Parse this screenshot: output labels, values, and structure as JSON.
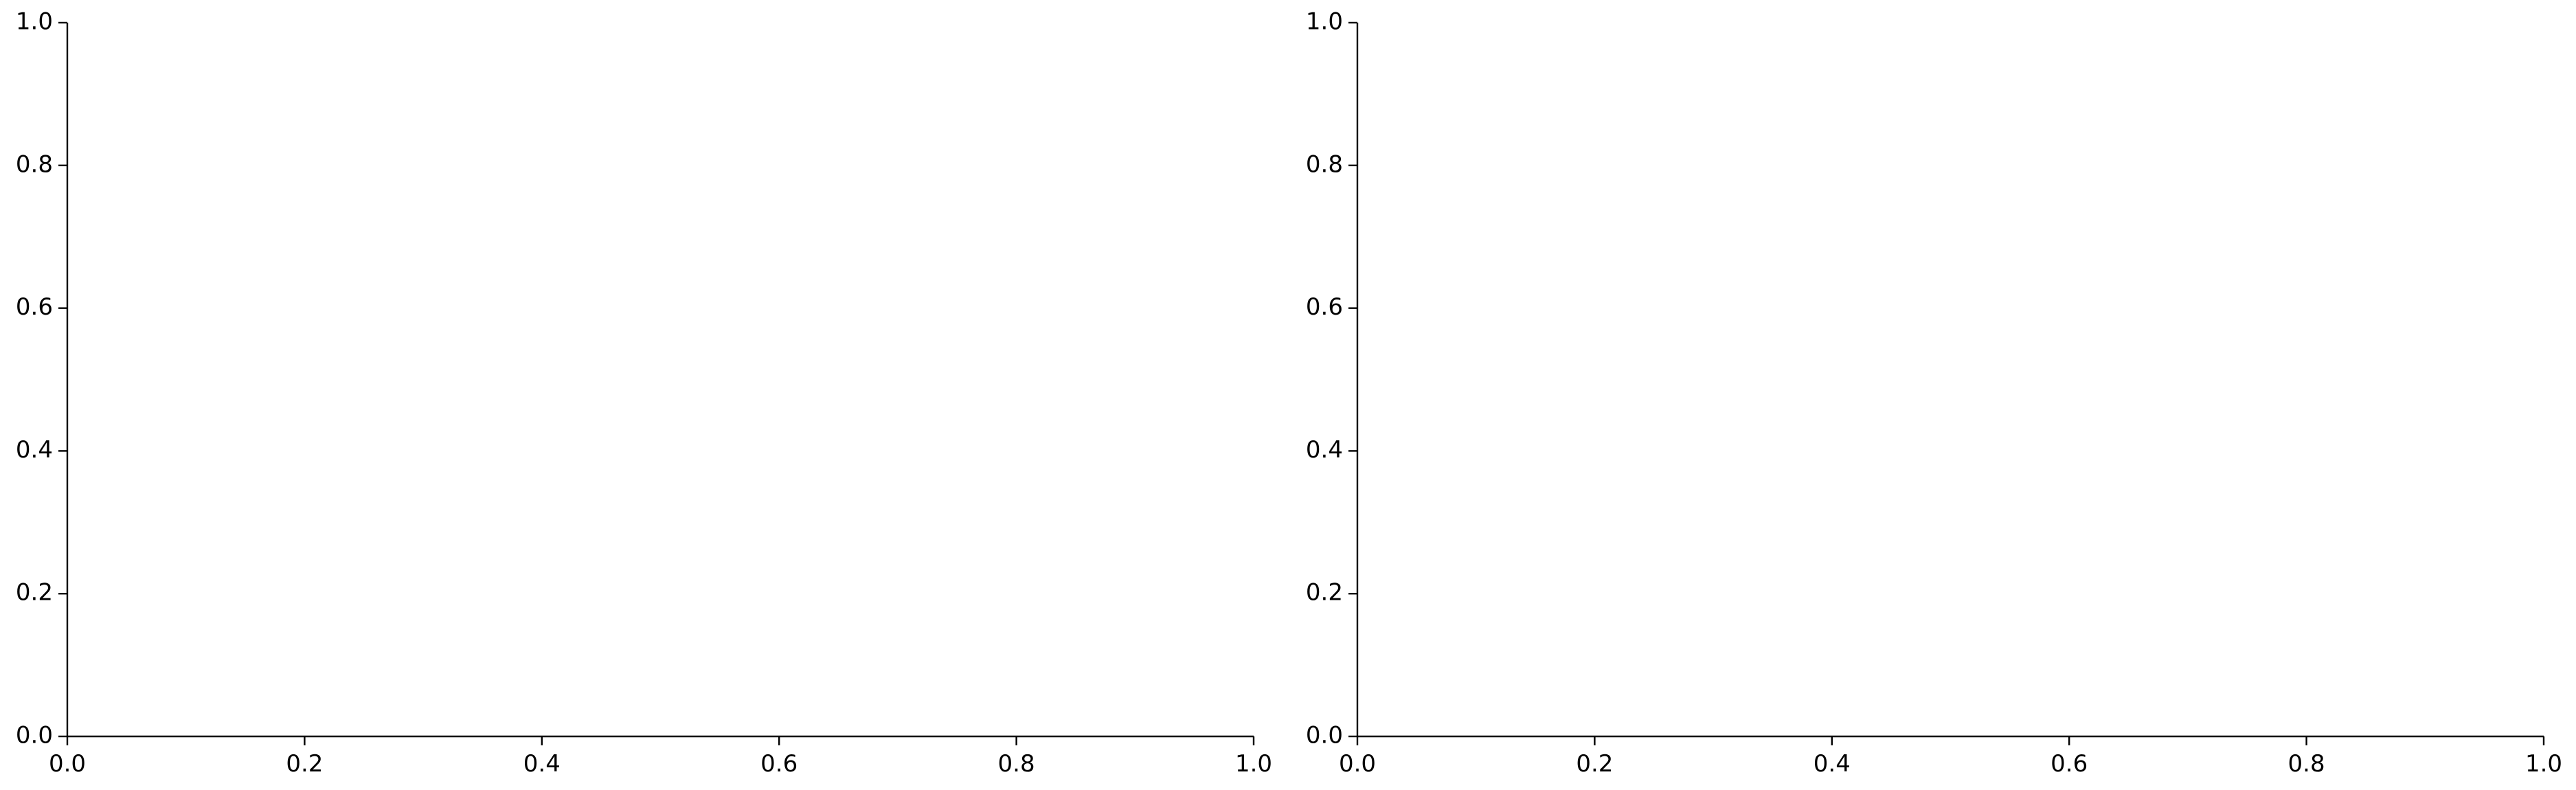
{
  "chart_data": [
    {
      "type": "line",
      "title": "",
      "xlabel": "",
      "ylabel": "",
      "xlim": [
        0,
        1
      ],
      "ylim": [
        0,
        1
      ],
      "x_ticks": [
        "0.0",
        "0.2",
        "0.4",
        "0.6",
        "0.8",
        "1.0"
      ],
      "y_ticks": [
        "0.0",
        "0.2",
        "0.4",
        "0.6",
        "0.8",
        "1.0"
      ],
      "series": [],
      "grid": false,
      "spines": [
        "left",
        "bottom"
      ]
    },
    {
      "type": "line",
      "title": "",
      "xlabel": "",
      "ylabel": "",
      "xlim": [
        0,
        1
      ],
      "ylim": [
        0,
        1
      ],
      "x_ticks": [
        "0.0",
        "0.2",
        "0.4",
        "0.6",
        "0.8",
        "1.0"
      ],
      "y_ticks": [
        "0.0",
        "0.2",
        "0.4",
        "0.6",
        "0.8",
        "1.0"
      ],
      "series": [],
      "grid": false,
      "spines": [
        "left",
        "bottom"
      ]
    }
  ],
  "colors": {
    "background": "#ffffff",
    "axis": "#000000",
    "text": "#000000"
  }
}
